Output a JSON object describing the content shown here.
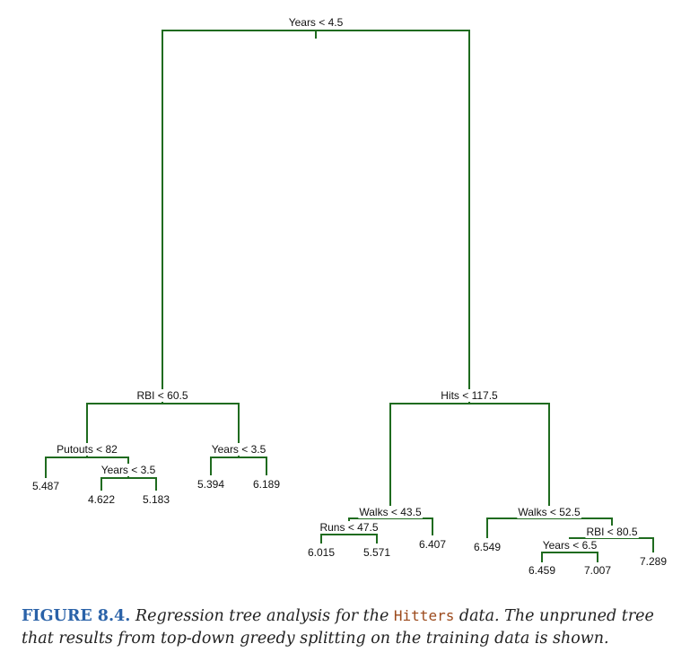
{
  "tree": {
    "splits": [
      {
        "id": "root",
        "text": "Years < 4.5"
      },
      {
        "id": "n_rbi",
        "text": "RBI < 60.5"
      },
      {
        "id": "n_hits",
        "text": "Hits < 117.5"
      },
      {
        "id": "n_putouts",
        "text": "Putouts < 82"
      },
      {
        "id": "n_years35",
        "text": "Years < 3.5"
      },
      {
        "id": "n_years35b",
        "text": "Years < 3.5"
      },
      {
        "id": "n_walks435",
        "text": "Walks < 43.5"
      },
      {
        "id": "n_runs",
        "text": "Runs < 47.5"
      },
      {
        "id": "n_walks525",
        "text": "Walks < 52.5"
      },
      {
        "id": "n_rbi805",
        "text": "RBI < 80.5"
      },
      {
        "id": "n_years65",
        "text": "Years < 6.5"
      }
    ],
    "leaves": [
      {
        "id": "l1",
        "value": "5.487"
      },
      {
        "id": "l2",
        "value": "4.622"
      },
      {
        "id": "l3",
        "value": "5.183"
      },
      {
        "id": "l4",
        "value": "5.394"
      },
      {
        "id": "l5",
        "value": "6.189"
      },
      {
        "id": "l6",
        "value": "6.015"
      },
      {
        "id": "l7",
        "value": "5.571"
      },
      {
        "id": "l8",
        "value": "6.407"
      },
      {
        "id": "l9",
        "value": "6.549"
      },
      {
        "id": "l10",
        "value": "6.459"
      },
      {
        "id": "l11",
        "value": "7.007"
      },
      {
        "id": "l12",
        "value": "7.289"
      }
    ],
    "edge_color": "#1f6b1f"
  },
  "caption": {
    "label": "FIGURE 8.4.",
    "text_before": "Regression tree analysis for the",
    "dataset": "Hitters",
    "text_after": "data. The unpruned tree that results from top-down greedy splitting on the training data is shown.",
    "label_color": "#2a62a8",
    "dataset_color": "#9c4a1c"
  }
}
